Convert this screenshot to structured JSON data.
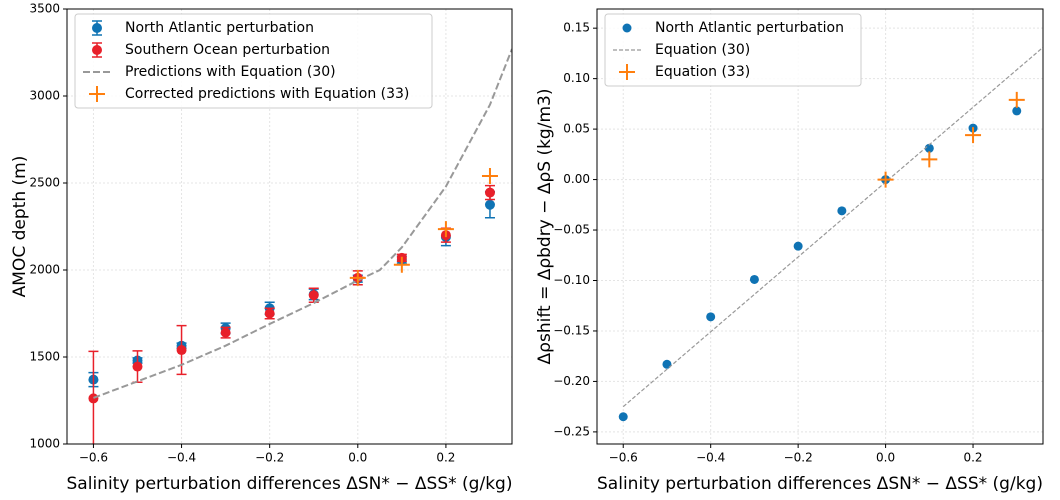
{
  "chart_data": [
    {
      "type": "scatter",
      "xlabel": "Salinity perturbation differences ΔSN* − ΔSS* (g/kg)",
      "ylabel": "AMOC depth (m)",
      "xlim": [
        -0.66,
        0.35
      ],
      "ylim": [
        1000,
        3500
      ],
      "xticks": [
        {
          "value": -0.6,
          "label": "−0.6"
        },
        {
          "value": -0.4,
          "label": "−0.4"
        },
        {
          "value": -0.2,
          "label": "−0.2"
        },
        {
          "value": 0.0,
          "label": "0.0"
        },
        0.2
      ],
      "yticks": [
        1000,
        1500,
        2000,
        2500,
        3000,
        3500
      ],
      "grid": true,
      "legend": "upper left",
      "series": [
        {
          "name": "North Atlantic perturbation",
          "color": "#0f73b4",
          "kind": "errorbar",
          "x": [
            -0.6,
            -0.5,
            -0.4,
            -0.3,
            -0.2,
            -0.1,
            0.0,
            0.1,
            0.2,
            0.3
          ],
          "values": [
            1370,
            1480,
            1565,
            1665,
            1780,
            1860,
            1950,
            2060,
            2190,
            2375
          ],
          "errors": [
            40,
            15,
            15,
            30,
            35,
            30,
            20,
            20,
            50,
            75
          ]
        },
        {
          "name": "Southern Ocean perturbation",
          "color": "#e8202a",
          "kind": "errorbar",
          "x": [
            -0.6,
            -0.5,
            -0.4,
            -0.3,
            -0.2,
            -0.1,
            0.0,
            0.1,
            0.2,
            0.3
          ],
          "values": [
            1262,
            1445,
            1540,
            1640,
            1750,
            1855,
            1955,
            2070,
            2200,
            2445
          ],
          "errors": [
            270,
            90,
            140,
            30,
            30,
            40,
            40,
            20,
            40,
            40
          ]
        },
        {
          "name": "Predictions with Equation (30)",
          "color": "#999999",
          "kind": "dashed",
          "x": [
            -0.6,
            -0.5,
            -0.4,
            -0.3,
            -0.2,
            -0.1,
            0.0,
            0.05,
            0.1,
            0.2,
            0.3,
            0.35
          ],
          "values": [
            1265,
            1360,
            1455,
            1565,
            1690,
            1810,
            1940,
            2000,
            2130,
            2480,
            2950,
            3270
          ]
        },
        {
          "name": "Corrected predictions with Equation (33)",
          "color": "#ff7f0e",
          "kind": "plus",
          "x": [
            0.0,
            0.1,
            0.2,
            0.3
          ],
          "values": [
            1955,
            2030,
            2235,
            2540
          ]
        }
      ]
    },
    {
      "type": "scatter",
      "xlabel": "Salinity perturbation differences ΔSN* − ΔSS* (g/kg)",
      "ylabel": "Δρshift = Δρbdry − ΔρS (kg/m3)",
      "xlim": [
        -0.66,
        0.36
      ],
      "ylim": [
        -0.262,
        0.169
      ],
      "xticks": [
        {
          "value": -0.6,
          "label": "−0.6"
        },
        {
          "value": -0.4,
          "label": "−0.4"
        },
        {
          "value": -0.2,
          "label": "−0.2"
        },
        {
          "value": 0.0,
          "label": "0.0"
        },
        0.2
      ],
      "yticks": [
        {
          "value": -0.25,
          "label": "−0.25"
        },
        {
          "value": -0.2,
          "label": "−0.20"
        },
        {
          "value": -0.15,
          "label": "−0.15"
        },
        {
          "value": -0.1,
          "label": "−0.10"
        },
        {
          "value": -0.05,
          "label": "−0.05"
        },
        {
          "value": 0.0,
          "label": "0.00"
        },
        0.05,
        {
          "value": 0.1,
          "label": "0.10"
        },
        0.15
      ],
      "grid": true,
      "legend": "upper left",
      "series": [
        {
          "name": "North Atlantic perturbation",
          "color": "#0f73b4",
          "kind": "dot",
          "x": [
            -0.6,
            -0.5,
            -0.4,
            -0.3,
            -0.2,
            -0.1,
            0.0,
            0.1,
            0.2,
            0.3
          ],
          "values": [
            -0.235,
            -0.183,
            -0.136,
            -0.099,
            -0.066,
            -0.031,
            0.0,
            0.031,
            0.051,
            0.068
          ]
        },
        {
          "name": "Equation (30)",
          "color": "#999999",
          "kind": "thin-dashed",
          "x": [
            -0.6,
            0.36
          ],
          "values": [
            -0.225,
            0.131
          ]
        },
        {
          "name": "Equation (33)",
          "color": "#ff7f0e",
          "kind": "plus",
          "x": [
            0.0,
            0.1,
            0.2,
            0.3
          ],
          "values": [
            0.0,
            0.02,
            0.044,
            0.079
          ]
        }
      ]
    }
  ]
}
